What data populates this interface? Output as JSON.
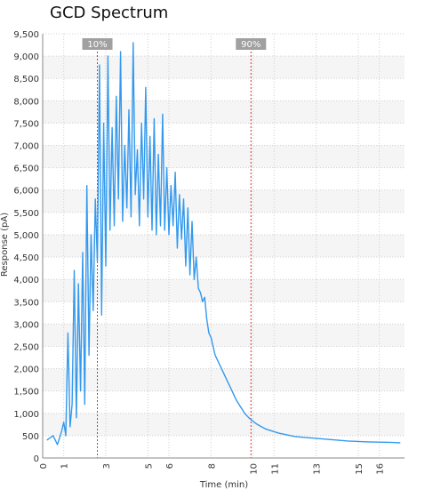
{
  "chart_data": {
    "type": "line",
    "title": "GCD Spectrum",
    "xlabel": "Time (min)",
    "ylabel": "Response (pA)",
    "xlim": [
      0,
      17.2
    ],
    "ylim": [
      0,
      9500
    ],
    "x_ticks": [
      0,
      1,
      3,
      5,
      6,
      8,
      10,
      11,
      13,
      15,
      16
    ],
    "y_ticks": [
      0,
      500,
      1000,
      1500,
      2000,
      2500,
      3000,
      3500,
      4000,
      4500,
      5000,
      5500,
      6000,
      6500,
      7000,
      7500,
      8000,
      8500,
      9000,
      9500
    ],
    "grid": true,
    "series_color": "#3399ee",
    "marker_color": "#e03030",
    "markers": [
      {
        "label": "10%",
        "x": 2.6
      },
      {
        "label": "90%",
        "x": 9.9
      }
    ],
    "series": [
      {
        "x": [
          0.2,
          0.5,
          0.7,
          0.9,
          1.0,
          1.1,
          1.2,
          1.3,
          1.4,
          1.5,
          1.6,
          1.7,
          1.8,
          1.9,
          2.0,
          2.1,
          2.2,
          2.3,
          2.4,
          2.5,
          2.6,
          2.7,
          2.8,
          2.9,
          3.0,
          3.1,
          3.2,
          3.3,
          3.4,
          3.5,
          3.6,
          3.7,
          3.8,
          3.9,
          4.0,
          4.1,
          4.2,
          4.3,
          4.4,
          4.5,
          4.6,
          4.7,
          4.8,
          4.9,
          5.0,
          5.1,
          5.2,
          5.3,
          5.4,
          5.5,
          5.6,
          5.7,
          5.8,
          5.9,
          6.0,
          6.1,
          6.2,
          6.3,
          6.4,
          6.5,
          6.6,
          6.7,
          6.8,
          6.9,
          7.0,
          7.1,
          7.2,
          7.3,
          7.4,
          7.5,
          7.6,
          7.7,
          7.8,
          7.9,
          8.0,
          8.2,
          8.4,
          8.6,
          8.8,
          9.0,
          9.2,
          9.4,
          9.6,
          9.8,
          10.0,
          10.2,
          10.4,
          10.6,
          10.8,
          11.0,
          11.2,
          11.5,
          11.8,
          12.0,
          12.5,
          13.0,
          13.5,
          14.0,
          14.5,
          15.0,
          15.5,
          16.0,
          16.5,
          17.0
        ],
        "y": [
          400,
          500,
          300,
          600,
          800,
          500,
          2800,
          700,
          1200,
          4200,
          900,
          3900,
          1500,
          4600,
          1200,
          6100,
          2300,
          5000,
          3300,
          5800,
          4400,
          8800,
          3200,
          7500,
          4300,
          9000,
          5100,
          7400,
          5200,
          8100,
          5800,
          9100,
          5300,
          7000,
          5600,
          7800,
          5400,
          9300,
          5900,
          6900,
          5200,
          7500,
          5800,
          8300,
          5400,
          7200,
          5100,
          7600,
          5000,
          6800,
          5200,
          7700,
          5100,
          6500,
          5000,
          6100,
          5200,
          6400,
          4700,
          5900,
          4900,
          5800,
          4300,
          5600,
          4100,
          5300,
          4000,
          4500,
          3800,
          3700,
          3500,
          3600,
          3100,
          2800,
          2700,
          2300,
          2100,
          1900,
          1700,
          1500,
          1300,
          1150,
          1000,
          900,
          820,
          750,
          700,
          650,
          620,
          590,
          560,
          530,
          500,
          480,
          460,
          440,
          420,
          400,
          380,
          370,
          360,
          355,
          350,
          340
        ]
      }
    ]
  }
}
